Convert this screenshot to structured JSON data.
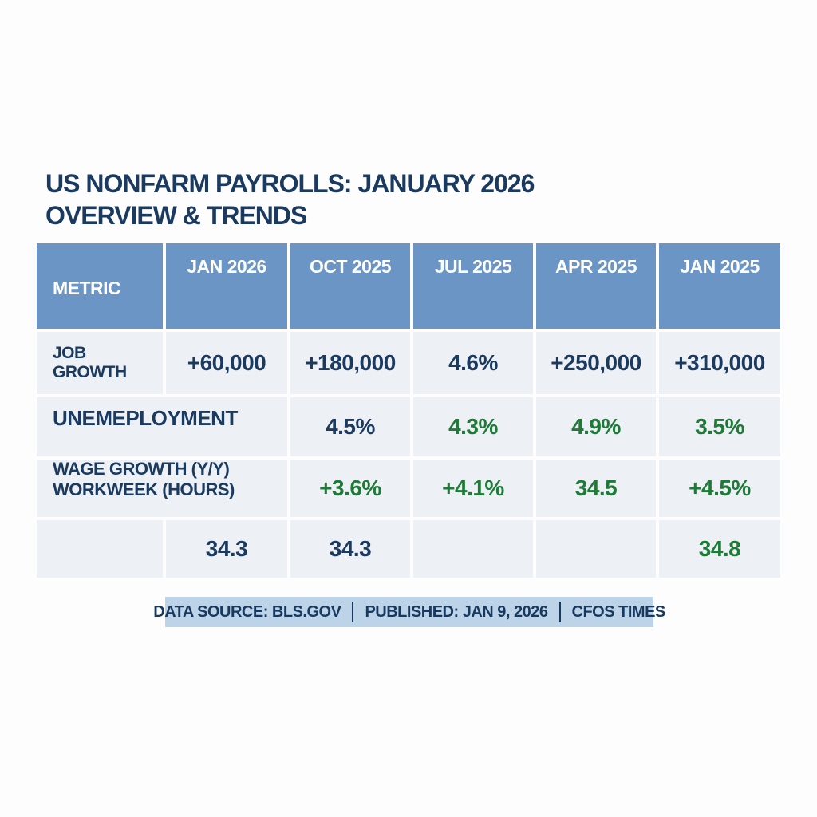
{
  "title": {
    "line1": "US NONFARM PAYROLLS: JANUARY 2026",
    "line2": "OVERVIEW & TRENDS"
  },
  "table": {
    "header": {
      "metric": "METRIC",
      "cols": [
        "JAN 2026",
        "OCT 2025",
        "JUL 2025",
        "APR 2025",
        "JAN 2025"
      ]
    },
    "rows": [
      {
        "label": "JOB GROWTH",
        "cells": [
          {
            "text": "+60,000",
            "tone": "navy"
          },
          {
            "text": "+180,000",
            "tone": "navy"
          },
          {
            "text": "4.6%",
            "tone": "navy"
          },
          {
            "text": "+250,000",
            "tone": "navy"
          },
          {
            "text": "+310,000",
            "tone": "navy"
          }
        ]
      },
      {
        "label": "UNEMEPLOYMENT",
        "cells": [
          {
            "text": "4.5%",
            "tone": "navy"
          },
          {
            "text": "4.3%",
            "tone": "green"
          },
          {
            "text": "4.9%",
            "tone": "green"
          },
          {
            "text": "3.5%",
            "tone": "green"
          }
        ]
      },
      {
        "label_line1": "WAGE GROWTH (Y/Y)",
        "label_line2": "WORKWEEK (HOURS)",
        "cells": [
          {
            "text": "+3.6%",
            "tone": "green"
          },
          {
            "text": "+4.1%",
            "tone": "green"
          },
          {
            "text": "34.5",
            "tone": "green"
          },
          {
            "text": "+4.5%",
            "tone": "green"
          }
        ]
      },
      {
        "label": "",
        "cells": [
          {
            "text": "34.3",
            "tone": "navy"
          },
          {
            "text": "34.3",
            "tone": "navy"
          },
          {
            "text": "",
            "tone": "navy"
          },
          {
            "text": "",
            "tone": "navy"
          },
          {
            "text": "34.8",
            "tone": "green"
          }
        ]
      }
    ]
  },
  "footer": {
    "segments": [
      "DATA SOURCE: BLS.GOV",
      "PUBLISHED: JAN 9, 2026",
      "CFOS TIMES"
    ]
  },
  "colors": {
    "header_bg": "#6b95c4",
    "row_bg": "#edf1f6",
    "navy_text": "#1b3a60",
    "green_text": "#1f7a38",
    "footer_bg": "#bdd3e8",
    "page_bg": "#fdfdfe"
  },
  "chart_data": {
    "type": "table",
    "title": "US NONFARM PAYROLLS: JANUARY 2026 OVERVIEW & TRENDS",
    "columns": [
      "METRIC",
      "JAN 2026",
      "OCT 2025",
      "JUL 2025",
      "APR 2025",
      "JAN 2025"
    ],
    "rows": [
      [
        "JOB GROWTH",
        "+60,000",
        "+180,000",
        "4.6%",
        "+250,000",
        "+310,000"
      ],
      [
        "UNEMEPLOYMENT",
        "",
        "4.5%",
        "4.3%",
        "4.9%",
        "3.5%"
      ],
      [
        "WAGE GROWTH (Y/Y) WORKWEEK (HOURS)",
        "",
        "+3.6%",
        "+4.1%",
        "34.5",
        "+4.5%"
      ],
      [
        "",
        "34.3",
        "34.3",
        "",
        "",
        "34.8"
      ]
    ],
    "notes": "DATA SOURCE: BLS.GOV | PUBLISHED: JAN 9, 2026 | CFOS TIMES",
    "layout": "merged label cells span METRIC+JAN 2026 columns in rows 2 and 3; green tone marks historical/positive readings, navy tone marks primary readings"
  }
}
